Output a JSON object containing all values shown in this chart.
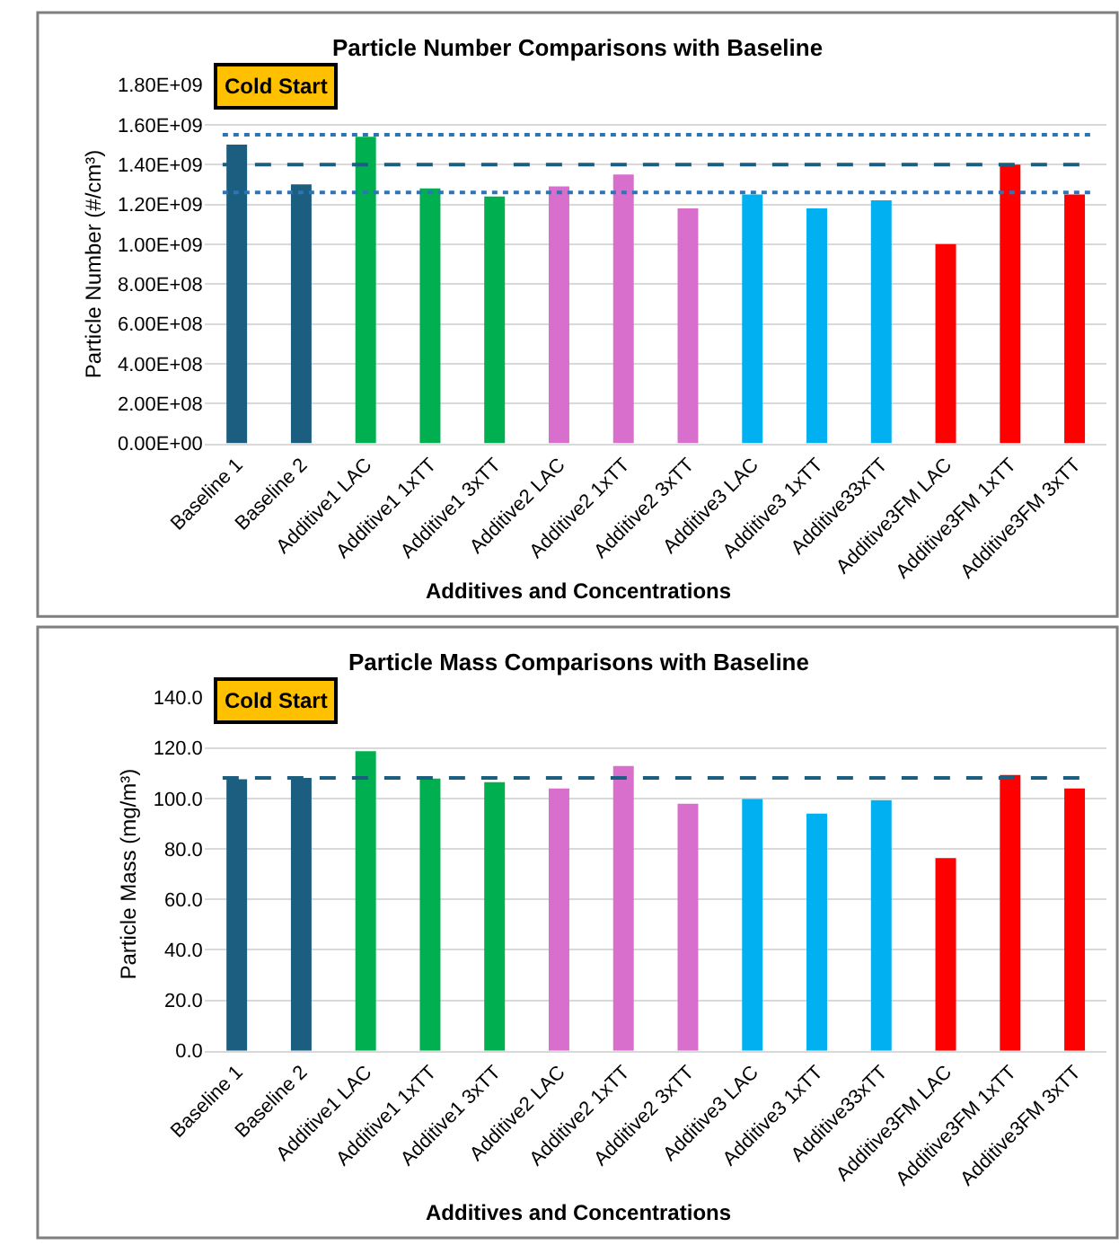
{
  "chart_data": [
    {
      "type": "bar",
      "title": "Particle Number Comparisons with Baseline",
      "xlabel": "Additives and Concentrations",
      "ylabel": "Particle Number (#/cm³)",
      "categories": [
        "Baseline 1",
        "Baseline 2",
        "Additive1 LAC",
        "Additive1 1xTT",
        "Additive1 3xTT",
        "Additive2 LAC",
        "Additive2 1xTT",
        "Additive2 3xTT",
        "Additive3 LAC",
        "Additive3 1xTT",
        "Additive33xTT",
        "Additive3FM LAC",
        "Additive3FM 1xTT",
        "Additive3FM 3xTT"
      ],
      "values": [
        1500000000.0,
        1300000000.0,
        1540000000.0,
        1280000000.0,
        1240000000.0,
        1290000000.0,
        1350000000.0,
        1180000000.0,
        1250000000.0,
        1180000000.0,
        1220000000.0,
        1000000000.0,
        1400000000.0,
        1250000000.0
      ],
      "colors": [
        "#1b5e80",
        "#1b5e80",
        "#00b050",
        "#00b050",
        "#00b050",
        "#d96fcc",
        "#d96fcc",
        "#d96fcc",
        "#00b0f0",
        "#00b0f0",
        "#00b0f0",
        "#ff0000",
        "#ff0000",
        "#ff0000"
      ],
      "ylim": [
        0,
        1800000000.0
      ],
      "yticks": [
        {
          "value": 0,
          "label": "0.00E+00"
        },
        {
          "value": 200000000.0,
          "label": "2.00E+08"
        },
        {
          "value": 400000000.0,
          "label": "4.00E+08"
        },
        {
          "value": 600000000.0,
          "label": "6.00E+08"
        },
        {
          "value": 800000000.0,
          "label": "8.00E+08"
        },
        {
          "value": 1000000000.0,
          "label": "1.00E+09"
        },
        {
          "value": 1200000000.0,
          "label": "1.20E+09"
        },
        {
          "value": 1400000000.0,
          "label": "1.40E+09"
        },
        {
          "value": 1600000000.0,
          "label": "1.60E+09"
        },
        {
          "value": 1800000000.0,
          "label": "1.80E+09"
        }
      ],
      "ref_lines": [
        {
          "axis": "y",
          "value": 1550000000.0,
          "color": "#2e75b6",
          "line_style": "dotted"
        },
        {
          "axis": "y",
          "value": 1400000000.0,
          "color": "#1b5e80",
          "line_style": "dashed"
        },
        {
          "axis": "y",
          "value": 1260000000.0,
          "color": "#2e75b6",
          "line_style": "dotted"
        }
      ],
      "annotations": [
        "Cold Start"
      ],
      "grid": "y"
    },
    {
      "type": "bar",
      "title": "Particle Mass Comparisons with Baseline",
      "xlabel": "Additives and Concentrations",
      "ylabel": "Particle Mass (mg/m³)",
      "categories": [
        "Baseline 1",
        "Baseline 2",
        "Additive1 LAC",
        "Additive1 1xTT",
        "Additive1 3xTT",
        "Additive2 LAC",
        "Additive2 1xTT",
        "Additive2 3xTT",
        "Additive3 LAC",
        "Additive3 1xTT",
        "Additive33xTT",
        "Additive3FM LAC",
        "Additive3FM 1xTT",
        "Additive3FM 3xTT"
      ],
      "values": [
        107.6,
        108.2,
        118.8,
        107.9,
        106.5,
        104.0,
        112.9,
        97.9,
        99.8,
        94.0,
        99.3,
        76.4,
        109.3,
        104.0
      ],
      "colors": [
        "#1b5e80",
        "#1b5e80",
        "#00b050",
        "#00b050",
        "#00b050",
        "#d96fcc",
        "#d96fcc",
        "#d96fcc",
        "#00b0f0",
        "#00b0f0",
        "#00b0f0",
        "#ff0000",
        "#ff0000",
        "#ff0000"
      ],
      "ylim": [
        0,
        140
      ],
      "yticks": [
        {
          "value": 0,
          "label": "0.0"
        },
        {
          "value": 20,
          "label": "20.0"
        },
        {
          "value": 40,
          "label": "40.0"
        },
        {
          "value": 60,
          "label": "60.0"
        },
        {
          "value": 80,
          "label": "80.0"
        },
        {
          "value": 100,
          "label": "100.0"
        },
        {
          "value": 120,
          "label": "120.0"
        },
        {
          "value": 140,
          "label": "140.0"
        }
      ],
      "ref_lines": [
        {
          "axis": "y",
          "value": 108.2,
          "color": "#1b5e80",
          "line_style": "dashed"
        }
      ],
      "annotations": [
        "Cold Start"
      ],
      "grid": "y"
    }
  ]
}
